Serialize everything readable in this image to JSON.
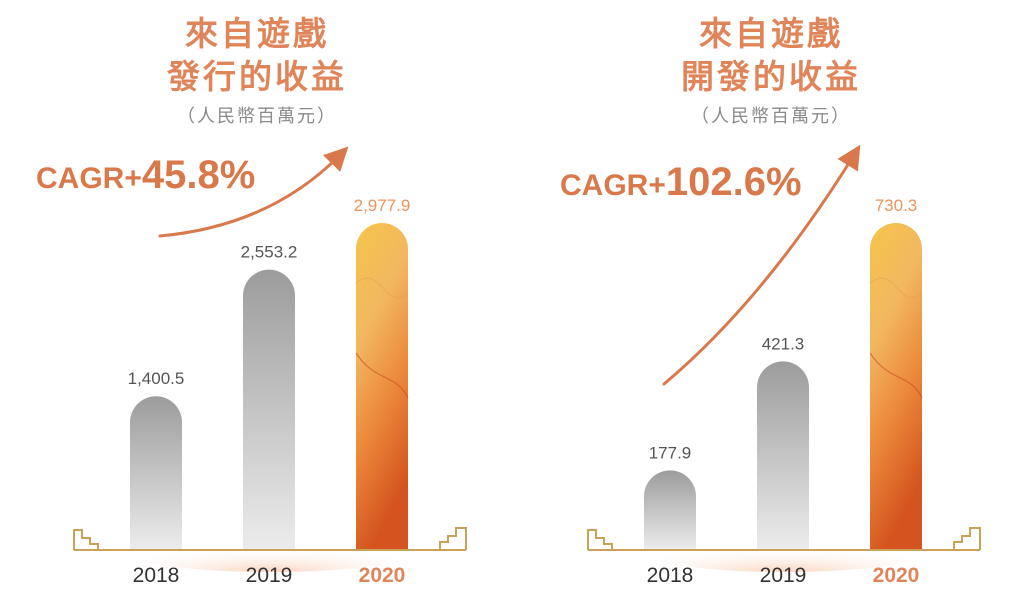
{
  "colors": {
    "accent": "#e0855a",
    "bar_gray": "#a8a8a8",
    "bar_highlight": "#ef8a3a",
    "baseline": "#c9a257"
  },
  "chart_data": [
    {
      "type": "bar",
      "title_lines": [
        "來自遊戲",
        "發行的收益"
      ],
      "unit_label": "（人民幣百萬元）",
      "cagr_prefix": "CAGR+",
      "cagr_value": "45.8%",
      "categories": [
        "2018",
        "2019",
        "2020"
      ],
      "values": [
        1400.5,
        2553.2,
        2977.9
      ],
      "value_labels": [
        "1,400.5",
        "2,553.2",
        "2,977.9"
      ],
      "highlight_index": 2
    },
    {
      "type": "bar",
      "title_lines": [
        "來自遊戲",
        "開發的收益"
      ],
      "unit_label": "（人民幣百萬元）",
      "cagr_prefix": "CAGR+",
      "cagr_value": "102.6%",
      "categories": [
        "2018",
        "2019",
        "2020"
      ],
      "values": [
        177.9,
        421.3,
        730.3
      ],
      "value_labels": [
        "177.9",
        "421.3",
        "730.3"
      ],
      "highlight_index": 2
    }
  ]
}
